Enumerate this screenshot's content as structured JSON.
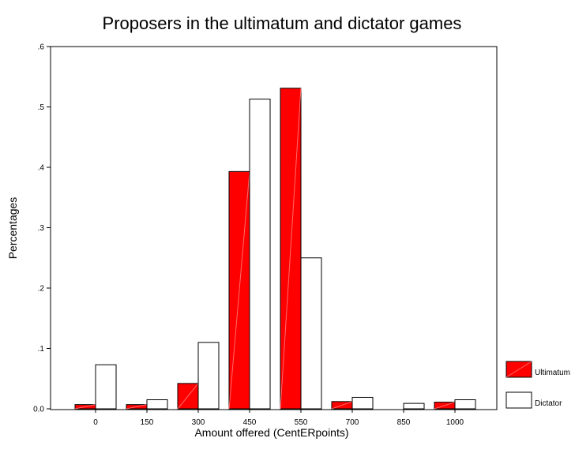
{
  "chart_data": {
    "type": "bar",
    "title": "Proposers in the ultimatum and dictator games",
    "xlabel": "Amount offered (CentERpoints)",
    "ylabel": "Percentages",
    "categories": [
      "0",
      "150",
      "300",
      "450",
      "550",
      "700",
      "850",
      "1000"
    ],
    "y_ticks": [
      ".6",
      ".5",
      ".4",
      ".3",
      ".2",
      ".1",
      "0.0"
    ],
    "ylim": [
      0,
      0.6
    ],
    "grid": false,
    "legend_position": "right",
    "series": [
      {
        "name": "Ultimatum",
        "color": "#ff0000",
        "values": [
          0.007,
          0.007,
          0.042,
          0.393,
          0.531,
          0.012,
          0.0,
          0.011
        ]
      },
      {
        "name": "Dictator",
        "color": "#ffffff",
        "values": [
          0.073,
          0.015,
          0.11,
          0.513,
          0.25,
          0.019,
          0.009,
          0.015
        ]
      }
    ]
  }
}
